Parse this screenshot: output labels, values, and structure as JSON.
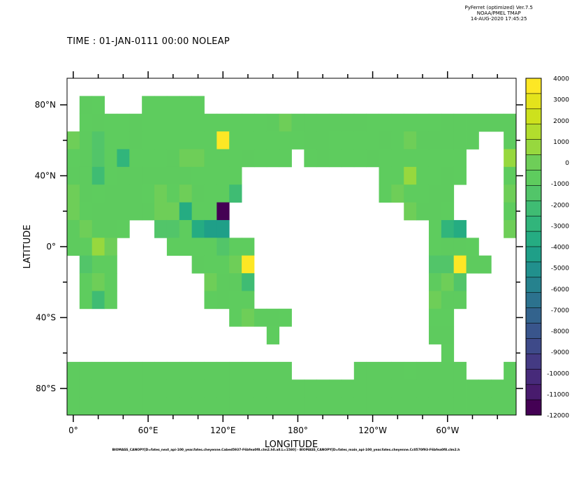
{
  "header": {
    "program": "PyFerret (optimized) Ver.7.5",
    "org": "NOAA/PMEL TMAP",
    "date": "14-AUG-2020 17:45:25"
  },
  "title": "TIME : 01-JAN-0111 00:00 NOLEAP",
  "footnote": "BIOMASS_CANOPY[D=fates_next_api-100_year.fates.cheyenne.Cabed5937-F6bfea0f8.clm2.h0.all.L=1580] - BIOMASS_CANOPY[D=fates_main_api-100_year.fates.cheyenne.Cc0570f93-F6bfea0f8.clm2.h",
  "chart_data": {
    "type": "heatmap",
    "xlabel": "LONGITUDE",
    "ylabel": "LATITUDE",
    "x_ticks": [
      "0°",
      "60°E",
      "120°E",
      "180°",
      "120°W",
      "60°W"
    ],
    "y_ticks": [
      "80°N",
      "40°N",
      "0°",
      "40°S",
      "80°S"
    ],
    "lon_range": [
      -5,
      355
    ],
    "lat_range": [
      -95,
      95
    ],
    "cell_size_deg": [
      10,
      10
    ],
    "lat_rows": [
      80,
      70,
      60,
      50,
      40,
      30,
      20,
      10,
      0,
      -10,
      -20,
      -30,
      -40,
      -50,
      -60,
      -70,
      -80,
      -90
    ],
    "lon_cols": [
      0,
      10,
      20,
      30,
      40,
      50,
      60,
      70,
      80,
      90,
      100,
      110,
      120,
      130,
      140,
      150,
      160,
      170,
      180,
      190,
      200,
      210,
      220,
      230,
      240,
      250,
      260,
      270,
      280,
      290,
      300,
      310,
      320,
      330,
      340,
      350
    ],
    "values": [
      [
        null,
        0,
        -700,
        null,
        null,
        null,
        -700,
        -700,
        -700,
        -700,
        -700,
        null,
        null,
        null,
        null,
        null,
        null,
        null,
        null,
        null,
        null,
        null,
        null,
        null,
        null,
        null,
        null,
        null,
        null,
        null,
        null,
        null,
        null,
        null,
        null,
        null
      ],
      [
        null,
        -500,
        0,
        -700,
        -500,
        0,
        -700,
        -700,
        -500,
        -500,
        -700,
        -500,
        -700,
        -600,
        -500,
        -500,
        0,
        300,
        0,
        0,
        0,
        0,
        0,
        0,
        -700,
        -500,
        -500,
        -500,
        -500,
        -500,
        0,
        0,
        0,
        0,
        0,
        0
      ],
      [
        -300,
        0,
        -1200,
        -500,
        -700,
        0,
        -700,
        -700,
        -400,
        -400,
        -500,
        -700,
        4000,
        -500,
        -500,
        -500,
        -700,
        -700,
        -500,
        0,
        0,
        -500,
        -700,
        -700,
        -700,
        0,
        -500,
        300,
        0,
        0,
        0,
        0,
        0,
        null,
        null,
        0
      ],
      [
        -700,
        0,
        -1200,
        -500,
        -2800,
        -500,
        -400,
        -400,
        0,
        -300,
        -300,
        -500,
        -500,
        -600,
        0,
        -700,
        -500,
        -700,
        null,
        -700,
        0,
        -500,
        -500,
        -500,
        0,
        -700,
        -500,
        -500,
        -600,
        -700,
        -500,
        -500,
        null,
        null,
        null,
        800
      ],
      [
        0,
        0,
        -2400,
        -500,
        0,
        0,
        0,
        0,
        0,
        0,
        -500,
        -700,
        -700,
        -900,
        null,
        null,
        null,
        null,
        null,
        null,
        null,
        null,
        null,
        null,
        null,
        -700,
        -500,
        500,
        -700,
        -500,
        0,
        -500,
        null,
        null,
        null,
        -500
      ],
      [
        -300,
        0,
        -500,
        0,
        0,
        0,
        -500,
        -300,
        -600,
        -300,
        0,
        -700,
        -400,
        -2200,
        null,
        null,
        null,
        null,
        null,
        null,
        null,
        null,
        null,
        null,
        null,
        -500,
        -300,
        -400,
        -500,
        0,
        0,
        null,
        null,
        null,
        null,
        -300
      ],
      [
        -300,
        -500,
        0,
        0,
        0,
        0,
        0,
        -300,
        -300,
        -3600,
        -900,
        -700,
        -12000,
        null,
        null,
        null,
        null,
        null,
        null,
        null,
        null,
        null,
        null,
        null,
        null,
        null,
        null,
        200,
        0,
        0,
        -500,
        null,
        null,
        null,
        null,
        -500
      ],
      [
        0,
        -300,
        0,
        0,
        -500,
        null,
        null,
        -1800,
        -1500,
        -700,
        -3400,
        -4200,
        -4200,
        null,
        null,
        null,
        null,
        null,
        null,
        null,
        null,
        null,
        null,
        null,
        null,
        null,
        null,
        null,
        null,
        -500,
        -2800,
        -3800,
        null,
        null,
        null,
        -300
      ],
      [
        0,
        -500,
        500,
        300,
        null,
        null,
        null,
        null,
        -700,
        -700,
        -700,
        -600,
        -1200,
        -500,
        -900,
        null,
        null,
        null,
        null,
        null,
        null,
        null,
        null,
        null,
        null,
        null,
        null,
        null,
        null,
        -700,
        0,
        0,
        -600,
        null,
        null,
        null
      ],
      [
        null,
        -1200,
        -900,
        -700,
        null,
        null,
        null,
        null,
        null,
        null,
        0,
        -500,
        -700,
        -300,
        3400,
        null,
        null,
        null,
        null,
        null,
        null,
        null,
        null,
        null,
        null,
        null,
        null,
        null,
        null,
        -1500,
        -1500,
        3700,
        0,
        0,
        null,
        null
      ],
      [
        null,
        -500,
        300,
        -700,
        null,
        null,
        null,
        null,
        null,
        null,
        null,
        -300,
        0,
        0,
        -2400,
        null,
        null,
        null,
        null,
        null,
        null,
        null,
        null,
        null,
        null,
        null,
        null,
        null,
        null,
        0,
        300,
        -1200,
        null,
        null,
        null,
        null
      ],
      [
        null,
        -500,
        -2200,
        -500,
        null,
        null,
        null,
        null,
        null,
        null,
        null,
        -500,
        0,
        -700,
        -900,
        null,
        null,
        null,
        null,
        null,
        null,
        null,
        null,
        null,
        null,
        null,
        null,
        null,
        null,
        -300,
        0,
        0,
        null,
        null,
        null,
        null
      ],
      [
        null,
        null,
        null,
        null,
        null,
        null,
        null,
        null,
        null,
        null,
        null,
        null,
        null,
        -700,
        -300,
        0,
        0,
        -500,
        null,
        null,
        null,
        null,
        null,
        null,
        null,
        null,
        null,
        null,
        null,
        -600,
        -600,
        null,
        null,
        null,
        null,
        null
      ],
      [
        null,
        null,
        null,
        null,
        null,
        null,
        null,
        null,
        null,
        null,
        null,
        null,
        null,
        null,
        null,
        null,
        -700,
        null,
        null,
        null,
        null,
        null,
        null,
        null,
        null,
        null,
        null,
        null,
        null,
        0,
        0,
        null,
        null,
        null,
        null,
        null
      ],
      [
        null,
        null,
        null,
        null,
        null,
        null,
        null,
        null,
        null,
        null,
        null,
        null,
        null,
        null,
        null,
        null,
        null,
        null,
        null,
        null,
        null,
        null,
        null,
        null,
        null,
        null,
        null,
        null,
        null,
        null,
        -700,
        null,
        null,
        null,
        null,
        null
      ],
      [
        0,
        0,
        0,
        0,
        0,
        0,
        0,
        0,
        0,
        0,
        0,
        0,
        0,
        0,
        0,
        0,
        0,
        0,
        null,
        null,
        null,
        null,
        null,
        0,
        0,
        0,
        0,
        -700,
        0,
        0,
        0,
        0,
        null,
        null,
        null,
        -700
      ],
      [
        0,
        0,
        0,
        0,
        0,
        0,
        0,
        0,
        0,
        0,
        0,
        0,
        0,
        0,
        0,
        0,
        0,
        0,
        0,
        0,
        0,
        0,
        0,
        0,
        0,
        0,
        0,
        0,
        0,
        0,
        0,
        0,
        0,
        0,
        0,
        0
      ],
      [
        0,
        0,
        0,
        0,
        0,
        0,
        0,
        0,
        0,
        0,
        0,
        0,
        0,
        0,
        0,
        0,
        0,
        0,
        0,
        0,
        0,
        0,
        0,
        0,
        0,
        0,
        0,
        0,
        0,
        0,
        0,
        0,
        0,
        0,
        0,
        0
      ]
    ],
    "colorbar": {
      "labels": [
        "4000",
        "3000",
        "2000",
        "1000",
        "0",
        "-1000",
        "-2000",
        "-3000",
        "-4000",
        "-5000",
        "-6000",
        "-7000",
        "-8000",
        "-9000",
        "-10000",
        "-11000",
        "-12000"
      ],
      "range": [
        -12000,
        4000
      ],
      "colors_top_to_bottom": [
        "#fde725",
        "#e4e31b",
        "#cde11d",
        "#b2dd2d",
        "#97d83e",
        "#6ece58",
        "#5ecc5e",
        "#52c569",
        "#3fbc73",
        "#31b57b",
        "#25ac82",
        "#1f9f88",
        "#21908d",
        "#26828e",
        "#2c728e",
        "#33638d",
        "#39558c",
        "#3e4a89",
        "#443a83",
        "#472a7a",
        "#481b6d",
        "#440154"
      ],
      "zero_color": "#5ecb5e"
    }
  }
}
